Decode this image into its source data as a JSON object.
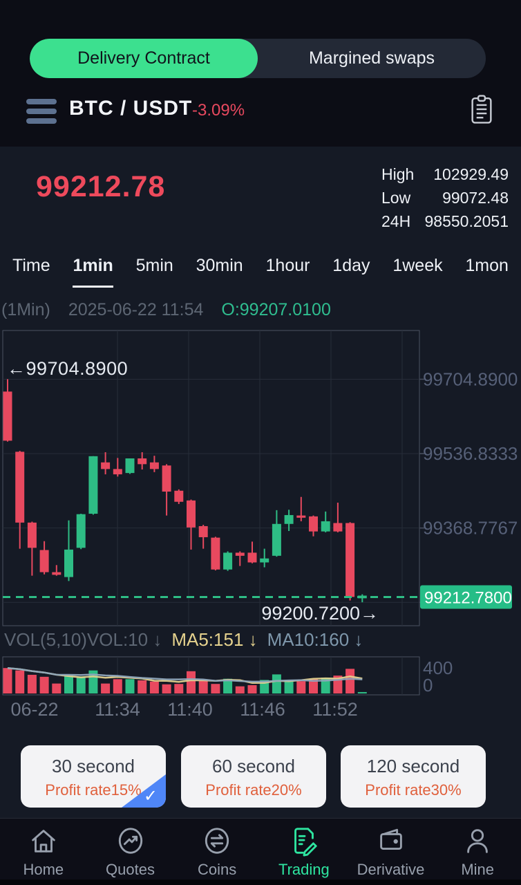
{
  "colors": {
    "accent_green": "#3ce08f",
    "candle_up": "#2ebd85",
    "candle_down": "#e8495f",
    "badge_green": "#26bd87",
    "price_red": "#ee4a5c",
    "profit_orange": "#e0603c",
    "selected_blue": "#4f86f7",
    "axis_gray": "#566078",
    "ma5_yellow": "#e5d28e",
    "ma10_blue": "#8fa6ba"
  },
  "segmented": {
    "left": "Delivery Contract",
    "right": "Margined swaps"
  },
  "header": {
    "pair": "BTC / USDT",
    "change": "-3.09%"
  },
  "ticker": {
    "price": "99212.78",
    "high_label": "High",
    "high": "102929.49",
    "low_label": "Low",
    "low": "99072.48",
    "range_label": "24H",
    "range": "98550.2051"
  },
  "timeframes": {
    "items": [
      "Time",
      "1min",
      "5min",
      "30min",
      "1hour",
      "1day",
      "1week",
      "1mon"
    ],
    "active": "1min"
  },
  "chart_info": {
    "period": "(1Min)",
    "datetime": "2025-06-22 11:54",
    "open": "O:99207.0100"
  },
  "indicator_row": {
    "vol": "VOL(5,10)VOL:10 ↓",
    "ma5": "MA5:151 ↓",
    "ma10": "MA10:160 ↓"
  },
  "chart_data": {
    "type": "candlestick",
    "title": "BTC/USDT 1min candles with volume",
    "x_labels": [
      "06-22",
      "11:34",
      "11:40",
      "11:46",
      "11:52"
    ],
    "y_tick_labels": [
      "99704.8900",
      "99536.8333",
      "99368.7767"
    ],
    "y_grid_prices": [
      99704.89,
      99536.8333,
      99368.7767,
      99200.72
    ],
    "price_top": 99815,
    "price_bottom": 99148,
    "current_price": 99212.78,
    "current_price_label": "99212.7800",
    "max_annotation": "←99704.8900",
    "min_annotation": "99200.7200→",
    "candles": [
      [
        99677,
        99705,
        99564,
        99566
      ],
      [
        99541,
        99543,
        99322,
        99381
      ],
      [
        99381,
        99383,
        99261,
        99324
      ],
      [
        99319,
        99339,
        99264,
        99269
      ],
      [
        99269,
        99285,
        99261,
        99263
      ],
      [
        99258,
        99386,
        99249,
        99320
      ],
      [
        99324,
        99401,
        99321,
        99400
      ],
      [
        99401,
        99531,
        99399,
        99531
      ],
      [
        99517,
        99540,
        99490,
        99502
      ],
      [
        99502,
        99527,
        99485,
        99490
      ],
      [
        99493,
        99526,
        99491,
        99526
      ],
      [
        99526,
        99540,
        99501,
        99513
      ],
      [
        99517,
        99532,
        99495,
        99502
      ],
      [
        99510,
        99513,
        99397,
        99451
      ],
      [
        99453,
        99456,
        99423,
        99428
      ],
      [
        99431,
        99433,
        99320,
        99370
      ],
      [
        99373,
        99376,
        99322,
        99348
      ],
      [
        99347,
        99349,
        99273,
        99275
      ],
      [
        99275,
        99316,
        99272,
        99313
      ],
      [
        99313,
        99316,
        99283,
        99306
      ],
      [
        99313,
        99338,
        99289,
        99291
      ],
      [
        99291,
        99322,
        99280,
        99300
      ],
      [
        99306,
        99409,
        99304,
        99378
      ],
      [
        99378,
        99410,
        99362,
        99398
      ],
      [
        99397,
        99439,
        99384,
        99392
      ],
      [
        99395,
        99397,
        99350,
        99361
      ],
      [
        99361,
        99406,
        99359,
        99384
      ],
      [
        99380,
        99426,
        99359,
        99361
      ],
      [
        99380,
        99382,
        99205,
        99213
      ],
      [
        99210,
        99219,
        99201,
        99216
      ]
    ],
    "volume": {
      "ylim": [
        0,
        400
      ],
      "tick_labels": [
        "400",
        "0"
      ],
      "values": [
        320,
        290,
        235,
        210,
        125,
        230,
        215,
        290,
        125,
        180,
        180,
        165,
        150,
        115,
        120,
        280,
        160,
        120,
        185,
        90,
        105,
        170,
        240,
        170,
        155,
        185,
        200,
        225,
        310,
        18
      ]
    }
  },
  "profit_buttons": [
    {
      "title": "30 second",
      "subtitle": "Profit rate15%",
      "selected": true
    },
    {
      "title": "60 second",
      "subtitle": "Profit rate20%",
      "selected": false
    },
    {
      "title": "120 second",
      "subtitle": "Profit rate30%",
      "selected": false
    }
  ],
  "nav": {
    "items": [
      {
        "label": "Home",
        "icon": "home-icon"
      },
      {
        "label": "Quotes",
        "icon": "quotes-icon"
      },
      {
        "label": "Coins",
        "icon": "coins-icon"
      },
      {
        "label": "Trading",
        "icon": "trading-icon"
      },
      {
        "label": "Derivative",
        "icon": "derivative-icon"
      },
      {
        "label": "Mine",
        "icon": "mine-icon"
      }
    ],
    "active": "Trading"
  }
}
